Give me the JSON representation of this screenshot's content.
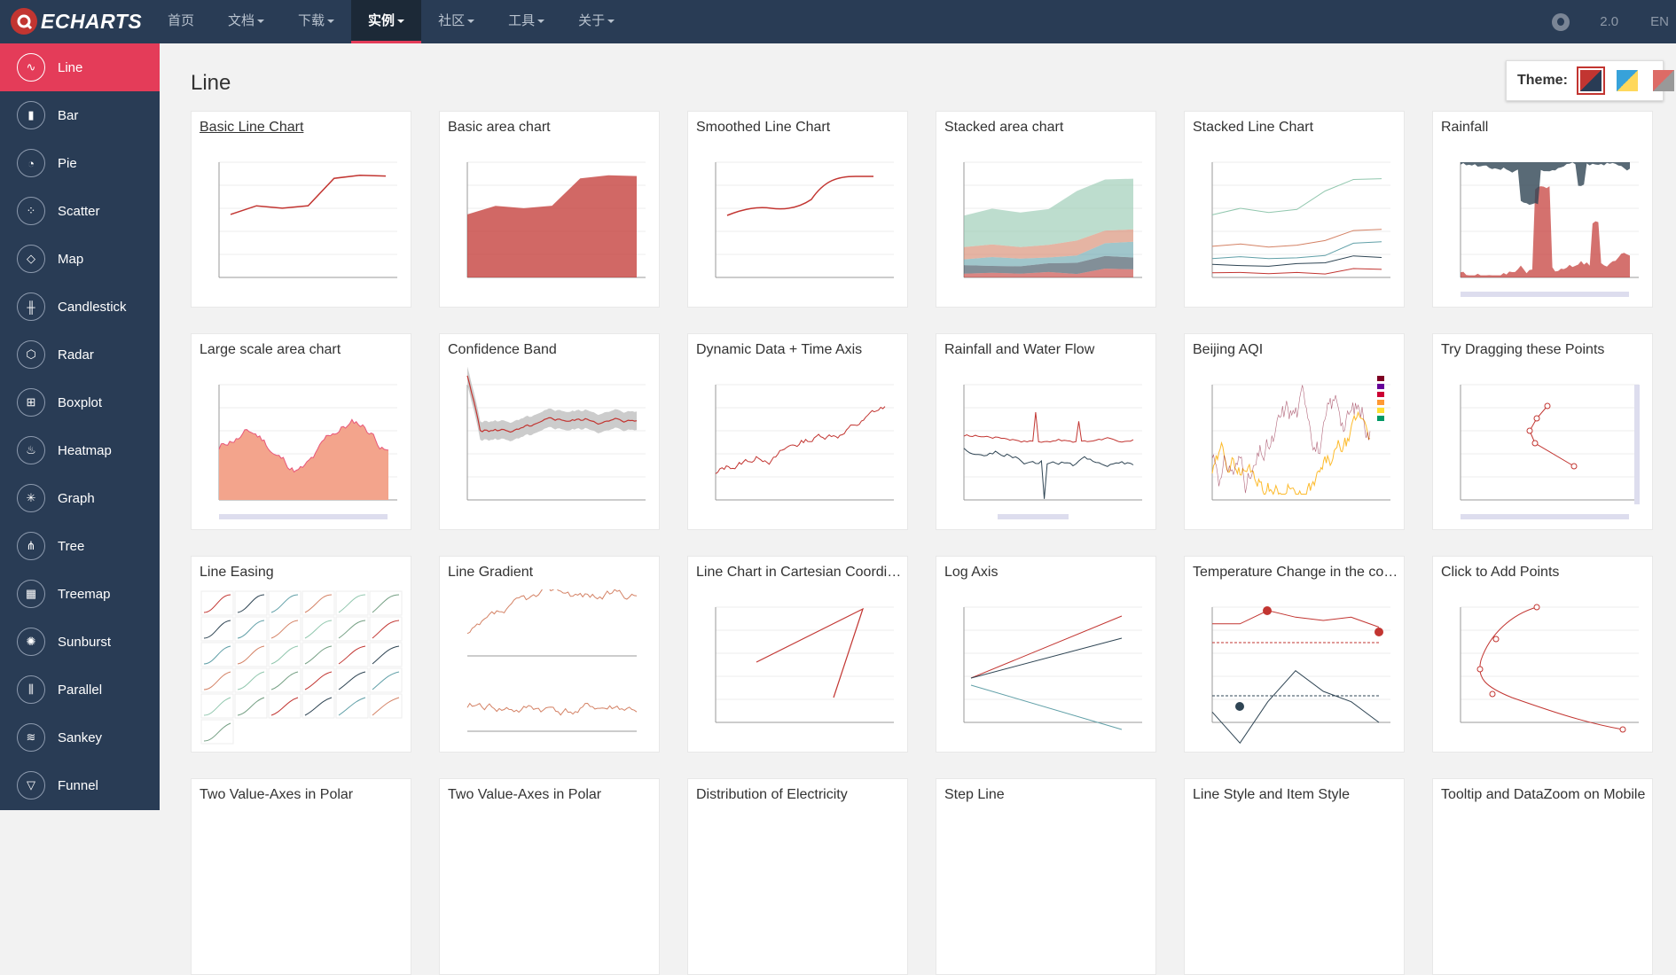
{
  "topbar": {
    "logo_text": "ECHARTS",
    "nav": [
      {
        "label": "首页",
        "dropdown": false,
        "active": false
      },
      {
        "label": "文档",
        "dropdown": true,
        "active": false
      },
      {
        "label": "下载",
        "dropdown": true,
        "active": false
      },
      {
        "label": "实例",
        "dropdown": true,
        "active": true
      },
      {
        "label": "社区",
        "dropdown": true,
        "active": false
      },
      {
        "label": "工具",
        "dropdown": true,
        "active": false
      },
      {
        "label": "关于",
        "dropdown": true,
        "active": false
      }
    ],
    "version": "2.0",
    "language": "EN"
  },
  "sidebar": {
    "items": [
      {
        "label": "Line",
        "icon": "line-chart-icon",
        "glyph": "∿",
        "active": true
      },
      {
        "label": "Bar",
        "icon": "bar-chart-icon",
        "glyph": "▮",
        "active": false
      },
      {
        "label": "Pie",
        "icon": "pie-chart-icon",
        "glyph": "◔",
        "active": false
      },
      {
        "label": "Scatter",
        "icon": "scatter-icon",
        "glyph": "⁘",
        "active": false
      },
      {
        "label": "Map",
        "icon": "map-icon",
        "glyph": "◇",
        "active": false
      },
      {
        "label": "Candlestick",
        "icon": "candlestick-icon",
        "glyph": "╫",
        "active": false
      },
      {
        "label": "Radar",
        "icon": "radar-icon",
        "glyph": "⬡",
        "active": false
      },
      {
        "label": "Boxplot",
        "icon": "boxplot-icon",
        "glyph": "⊞",
        "active": false
      },
      {
        "label": "Heatmap",
        "icon": "heatmap-icon",
        "glyph": "♨",
        "active": false
      },
      {
        "label": "Graph",
        "icon": "graph-icon",
        "glyph": "✳",
        "active": false
      },
      {
        "label": "Tree",
        "icon": "tree-icon",
        "glyph": "⋔",
        "active": false
      },
      {
        "label": "Treemap",
        "icon": "treemap-icon",
        "glyph": "▦",
        "active": false
      },
      {
        "label": "Sunburst",
        "icon": "sunburst-icon",
        "glyph": "✺",
        "active": false
      },
      {
        "label": "Parallel",
        "icon": "parallel-icon",
        "glyph": "⫼",
        "active": false
      },
      {
        "label": "Sankey",
        "icon": "sankey-icon",
        "glyph": "≋",
        "active": false
      },
      {
        "label": "Funnel",
        "icon": "funnel-icon",
        "glyph": "▽",
        "active": false
      }
    ]
  },
  "main": {
    "title": "Line",
    "theme": {
      "label": "Theme:",
      "options": [
        {
          "name": "theme-default-icon",
          "colors": [
            "#c23531",
            "#293c55"
          ],
          "selected": true
        },
        {
          "name": "theme-light-icon",
          "colors": [
            "#37a2da",
            "#ffd85c"
          ],
          "selected": false
        },
        {
          "name": "theme-dark-icon",
          "colors": [
            "#dd6b66",
            "#999999"
          ],
          "selected": false
        }
      ]
    },
    "cards": [
      {
        "title": "Basic Line Chart",
        "kind": "line"
      },
      {
        "title": "Basic area chart",
        "kind": "area"
      },
      {
        "title": "Smoothed Line Chart",
        "kind": "smooth"
      },
      {
        "title": "Stacked area chart",
        "kind": "stackarea"
      },
      {
        "title": "Stacked Line Chart",
        "kind": "stackline"
      },
      {
        "title": "Rainfall",
        "kind": "rainfall"
      },
      {
        "title": "Large scale area chart",
        "kind": "large"
      },
      {
        "title": "Confidence Band",
        "kind": "band"
      },
      {
        "title": "Dynamic Data + Time Axis",
        "kind": "dynamic"
      },
      {
        "title": "Rainfall and Water Flow",
        "kind": "flow"
      },
      {
        "title": "Beijing AQI",
        "kind": "aqi"
      },
      {
        "title": "Try Dragging these Points",
        "kind": "drag"
      },
      {
        "title": "Line Easing",
        "kind": "easing"
      },
      {
        "title": "Line Gradient",
        "kind": "gradient"
      },
      {
        "title": "Line Chart in Cartesian Coordinate System",
        "kind": "cartesian"
      },
      {
        "title": "Log Axis",
        "kind": "log"
      },
      {
        "title": "Temperature Change in the coming week",
        "kind": "temp"
      },
      {
        "title": "Click to Add Points",
        "kind": "click"
      },
      {
        "title": "Two Value-Axes in Polar",
        "kind": "none"
      },
      {
        "title": "Two Value-Axes in Polar",
        "kind": "none"
      },
      {
        "title": "Distribution of Electricity",
        "kind": "none"
      },
      {
        "title": "Step Line",
        "kind": "none"
      },
      {
        "title": "Line Style and Item Style",
        "kind": "none"
      },
      {
        "title": "Tooltip and DataZoom on Mobile",
        "kind": "none"
      }
    ]
  }
}
